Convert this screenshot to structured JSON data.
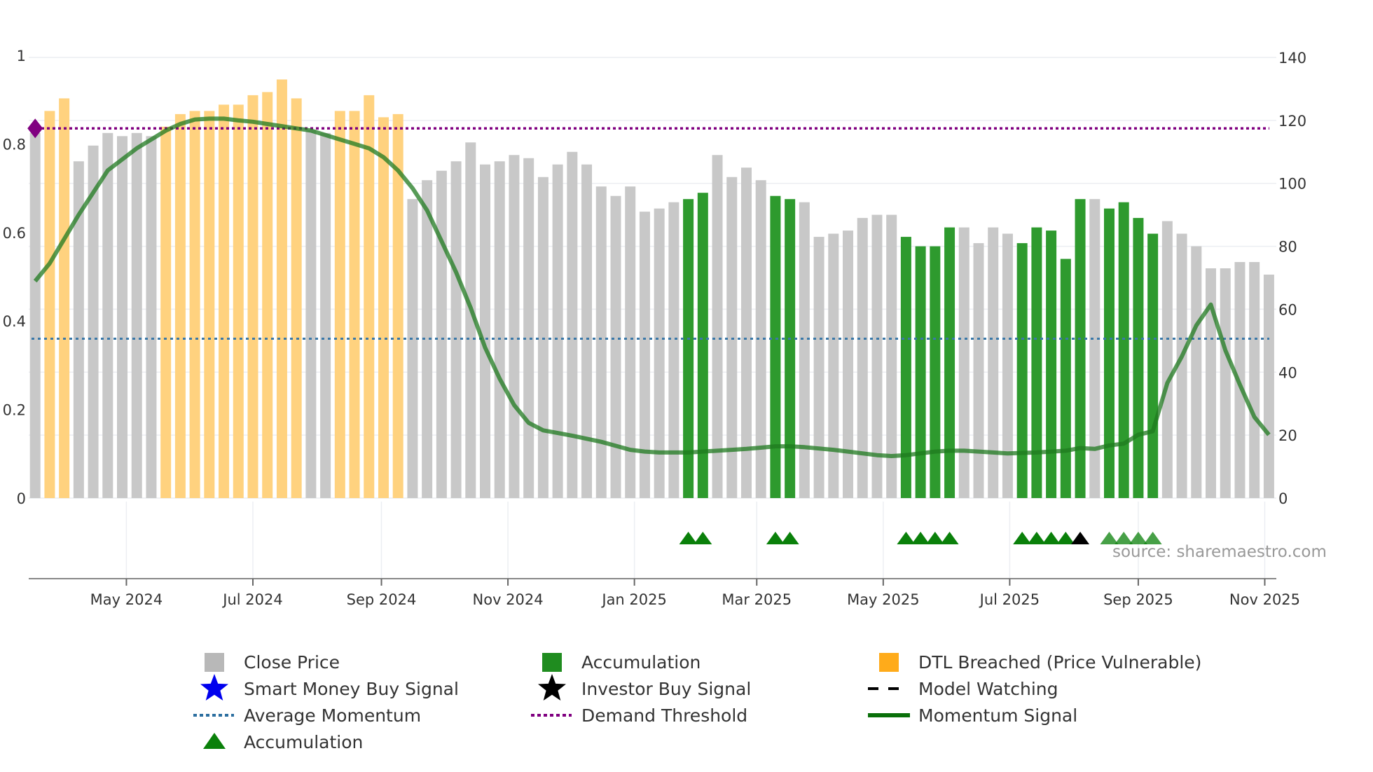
{
  "chart_data": {
    "type": "bar",
    "title": "",
    "source": "source: sharemaestro.com",
    "left_axis": {
      "ylim": [
        0,
        1
      ],
      "ticks": [
        0,
        0.2,
        0.4,
        0.6,
        0.8,
        1
      ],
      "tick_labels": [
        "0",
        "0.2",
        "0.4",
        "0.6",
        "0.8",
        "1"
      ]
    },
    "right_axis": {
      "ylim": [
        0,
        140
      ],
      "ticks": [
        0,
        20,
        40,
        60,
        80,
        100,
        120,
        140
      ],
      "tick_labels": [
        "0",
        "20",
        "40",
        "60",
        "80",
        "100",
        "120",
        "140"
      ]
    },
    "x_axis": {
      "start_week": "2024-03-18",
      "ticks": [
        {
          "date": "2024-05-01",
          "label": "May 2024"
        },
        {
          "date": "2024-07-01",
          "label": "Jul 2024"
        },
        {
          "date": "2024-09-01",
          "label": "Sep 2024"
        },
        {
          "date": "2024-11-01",
          "label": "Nov 2024"
        },
        {
          "date": "2025-01-01",
          "label": "Jan 2025"
        },
        {
          "date": "2025-03-01",
          "label": "Mar 2025"
        },
        {
          "date": "2025-05-01",
          "label": "May 2025"
        },
        {
          "date": "2025-07-01",
          "label": "Jul 2025"
        },
        {
          "date": "2025-09-01",
          "label": "Sep 2025"
        },
        {
          "date": "2025-11-01",
          "label": "Nov 2025"
        }
      ]
    },
    "close_price": [
      116,
      123,
      127,
      107,
      112,
      116,
      115,
      116,
      115,
      118,
      122,
      123,
      123,
      125,
      125,
      128,
      129,
      133,
      127,
      117,
      116,
      123,
      123,
      128,
      121,
      122,
      95,
      101,
      104,
      107,
      113,
      106,
      107,
      109,
      108,
      102,
      106,
      110,
      106,
      99,
      96,
      99,
      91,
      92,
      94,
      95,
      97,
      109,
      102,
      105,
      101,
      96,
      95,
      94,
      83,
      84,
      85,
      89,
      90,
      90,
      83,
      80,
      80,
      86,
      86,
      81,
      86,
      84,
      81,
      86,
      85,
      76,
      95,
      95,
      92,
      94,
      89,
      84,
      88,
      84,
      80,
      73,
      73,
      75,
      75,
      71
    ],
    "bar_state": [
      "gray",
      "dtl",
      "dtl",
      "gray",
      "gray",
      "gray",
      "gray",
      "gray",
      "gray",
      "dtl",
      "dtl",
      "dtl",
      "dtl",
      "dtl",
      "dtl",
      "dtl",
      "dtl",
      "dtl",
      "dtl",
      "gray",
      "gray",
      "dtl",
      "dtl",
      "dtl",
      "dtl",
      "dtl",
      "gray",
      "gray",
      "gray",
      "gray",
      "gray",
      "gray",
      "gray",
      "gray",
      "gray",
      "gray",
      "gray",
      "gray",
      "gray",
      "gray",
      "gray",
      "gray",
      "gray",
      "gray",
      "gray",
      "acc",
      "acc",
      "gray",
      "gray",
      "gray",
      "gray",
      "acc",
      "acc",
      "gray",
      "gray",
      "gray",
      "gray",
      "gray",
      "gray",
      "gray",
      "acc",
      "acc",
      "acc",
      "acc",
      "gray",
      "gray",
      "gray",
      "gray",
      "acc",
      "acc",
      "acc",
      "acc",
      "acc",
      "gray",
      "acc",
      "acc",
      "acc",
      "acc",
      "gray",
      "gray",
      "gray",
      "gray",
      "gray",
      "gray",
      "gray",
      "gray"
    ],
    "momentum": [
      0.49,
      0.53,
      0.585,
      0.64,
      0.69,
      0.74,
      0.765,
      0.79,
      0.81,
      0.83,
      0.845,
      0.855,
      0.857,
      0.857,
      0.853,
      0.85,
      0.845,
      0.84,
      0.835,
      0.83,
      0.82,
      0.81,
      0.8,
      0.79,
      0.77,
      0.74,
      0.7,
      0.65,
      0.58,
      0.51,
      0.43,
      0.34,
      0.27,
      0.21,
      0.17,
      0.153,
      0.147,
      0.141,
      0.134,
      0.127,
      0.118,
      0.109,
      0.105,
      0.103,
      0.103,
      0.103,
      0.105,
      0.107,
      0.109,
      0.111,
      0.114,
      0.117,
      0.117,
      0.115,
      0.112,
      0.109,
      0.105,
      0.101,
      0.097,
      0.095,
      0.097,
      0.101,
      0.105,
      0.107,
      0.107,
      0.105,
      0.103,
      0.101,
      0.102,
      0.103,
      0.105,
      0.107,
      0.113,
      0.111,
      0.119,
      0.123,
      0.143,
      0.151,
      0.26,
      0.32,
      0.39,
      0.437,
      0.334,
      0.256,
      0.183,
      0.143
    ],
    "demand_threshold": 0.835,
    "average_momentum": 0.36,
    "accumulation_signals": [
      45,
      46,
      51,
      52,
      60,
      61,
      62,
      63,
      68,
      69,
      70,
      71,
      74,
      75,
      76,
      77
    ],
    "investor_buy_signals": [
      72
    ],
    "colors": {
      "gray": "#c8c8c8",
      "dtl": "#ffd27f",
      "acc": "#2e9a2e",
      "momentum": "#1f7a1f",
      "demand": "#800080",
      "average": "#3a78a8",
      "triangle": "#0a800a"
    },
    "legend": [
      {
        "label": "Close Price",
        "icon": "gray-square"
      },
      {
        "label": "Accumulation",
        "icon": "green-square"
      },
      {
        "label": "DTL Breached (Price Vulnerable)",
        "icon": "orange-square"
      },
      {
        "label": "Smart Money Buy Signal",
        "icon": "blue-star"
      },
      {
        "label": "Investor Buy Signal",
        "icon": "black-star"
      },
      {
        "label": "Model Watching",
        "icon": "black-dashed-line"
      },
      {
        "label": "Average Momentum",
        "icon": "blue-dotted-line"
      },
      {
        "label": "Demand Threshold",
        "icon": "purple-dotted-line"
      },
      {
        "label": "Momentum Signal",
        "icon": "green-line"
      },
      {
        "label": "Accumulation",
        "icon": "green-triangle"
      }
    ]
  }
}
